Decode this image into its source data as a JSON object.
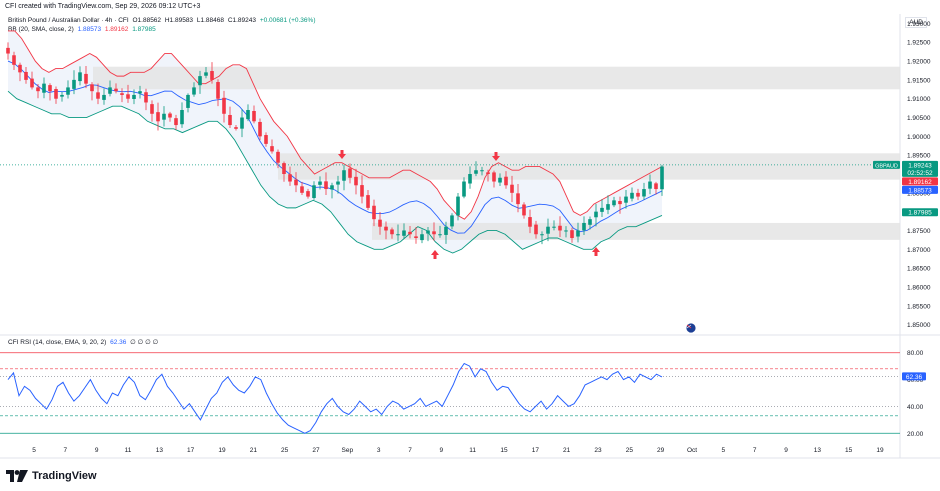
{
  "header": {
    "attribution": "CFI created with TradingView.com, Sep 29, 2026 09:12 UTC+3"
  },
  "currency_badge": "AUD",
  "legend": {
    "symbol": "British Pound / Australian Dollar · 4h · CFI",
    "open": "O1.88562",
    "high": "H1.89583",
    "low": "L1.88468",
    "close": "C1.89243",
    "change": "+0.00681 (+0.36%)",
    "bb_label": "BB (20, SMA, close, 2)",
    "bb_basis": "1.88573",
    "bb_upper": "1.89162",
    "bb_lower": "1.87985"
  },
  "rsi_legend": {
    "label": "CFI RSI (14, close, EMA, 9, 20, 2)",
    "value": "62.36",
    "extra": "∅ ∅ ∅ ∅"
  },
  "price_tags": {
    "symbol": "GBPAUD",
    "last": "1.89243",
    "countdown": "02:52:52",
    "upper": "1.89162",
    "basis": "1.88573",
    "lower": "1.87985",
    "rsi": "62.36"
  },
  "brand": "TradingView",
  "colors": {
    "up": "#089981",
    "down": "#f23645",
    "basis": "#2962ff",
    "upper": "#f23645",
    "lower": "#089981",
    "zone": "#e4e4e4",
    "fill": "#eef3fb",
    "rsi": "#2962ff",
    "arrow": "#f23645"
  },
  "chart_data": {
    "type": "candlestick",
    "y_ticks": [
      "1.93000",
      "1.92500",
      "1.92000",
      "1.91500",
      "1.91000",
      "1.90500",
      "1.90000",
      "1.89500",
      "1.89000",
      "1.88500",
      "1.88000",
      "1.87500",
      "1.87000",
      "1.86500",
      "1.86000",
      "1.85500",
      "1.85000"
    ],
    "ylim": [
      1.8475,
      1.9325
    ],
    "x_ticks": [
      "5",
      "7",
      "9",
      "11",
      "13",
      "17",
      "19",
      "21",
      "25",
      "27",
      "Sep",
      "3",
      "7",
      "9",
      "11",
      "15",
      "17",
      "21",
      "23",
      "25",
      "29",
      "Oct",
      "5",
      "7",
      "9",
      "13",
      "15",
      "19"
    ],
    "close_path": [
      1.922,
      1.919,
      1.917,
      1.915,
      1.913,
      1.912,
      1.914,
      1.912,
      1.91,
      1.911,
      1.913,
      1.915,
      1.917,
      1.914,
      1.912,
      1.91,
      1.911,
      1.913,
      1.912,
      1.911,
      1.91,
      1.911,
      1.912,
      1.909,
      1.906,
      1.904,
      1.906,
      1.905,
      1.903,
      1.907,
      1.911,
      1.913,
      1.916,
      1.917,
      1.915,
      1.91,
      1.906,
      1.903,
      1.902,
      1.905,
      1.907,
      1.904,
      1.9,
      1.898,
      1.896,
      1.893,
      1.89,
      1.888,
      1.887,
      1.885,
      1.884,
      1.887,
      1.888,
      1.886,
      1.887,
      1.888,
      1.891,
      1.889,
      1.887,
      1.884,
      1.881,
      1.878,
      1.876,
      1.875,
      1.874,
      1.874,
      1.875,
      1.874,
      1.873,
      1.874,
      1.875,
      1.874,
      1.874,
      1.876,
      1.879,
      1.884,
      1.888,
      1.89,
      1.891,
      1.891,
      1.89,
      1.888,
      1.889,
      1.887,
      1.885,
      1.882,
      1.879,
      1.876,
      1.874,
      1.874,
      1.876,
      1.876,
      1.875,
      1.875,
      1.873,
      1.875,
      1.877,
      1.878,
      1.88,
      1.881,
      1.882,
      1.883,
      1.882,
      1.884,
      1.885,
      1.884,
      1.886,
      1.888,
      1.886,
      1.892
    ],
    "bb_upper_path": [
      1.928,
      1.928,
      1.926,
      1.923,
      1.92,
      1.918,
      1.917,
      1.918,
      1.918,
      1.919,
      1.92,
      1.921,
      1.922,
      1.921,
      1.919,
      1.917,
      1.916,
      1.916,
      1.917,
      1.917,
      1.917,
      1.918,
      1.92,
      1.922,
      1.922,
      1.92,
      1.918,
      1.916,
      1.914,
      1.914,
      1.915,
      1.916,
      1.918,
      1.919,
      1.919,
      1.918,
      1.914,
      1.91,
      1.907,
      1.904,
      1.902,
      1.9,
      1.897,
      1.894,
      1.892,
      1.89,
      1.891,
      1.892,
      1.893,
      1.893,
      1.892,
      1.891,
      1.89,
      1.889,
      1.889,
      1.889,
      1.889,
      1.89,
      1.891,
      1.891,
      1.89,
      1.889,
      1.888,
      1.886,
      1.883,
      1.881,
      1.879,
      1.878,
      1.88,
      1.884,
      1.889,
      1.892,
      1.893,
      1.892,
      1.891,
      1.891,
      1.892,
      1.892,
      1.892,
      1.891,
      1.89,
      1.888,
      1.884,
      1.88,
      1.879,
      1.88,
      1.882,
      1.883,
      1.884,
      1.885,
      1.886,
      1.887,
      1.888,
      1.889,
      1.89,
      1.891,
      1.892
    ],
    "bb_lower_path": [
      1.912,
      1.91,
      1.909,
      1.908,
      1.907,
      1.906,
      1.906,
      1.905,
      1.905,
      1.905,
      1.906,
      1.907,
      1.908,
      1.908,
      1.907,
      1.906,
      1.904,
      1.903,
      1.902,
      1.902,
      1.901,
      1.902,
      1.903,
      1.904,
      1.904,
      1.902,
      1.899,
      1.895,
      1.891,
      1.887,
      1.884,
      1.882,
      1.881,
      1.881,
      1.882,
      1.883,
      1.882,
      1.88,
      1.877,
      1.874,
      1.872,
      1.871,
      1.87,
      1.87,
      1.871,
      1.872,
      1.874,
      1.876,
      1.875,
      1.872,
      1.87,
      1.869,
      1.87,
      1.872,
      1.874,
      1.875,
      1.875,
      1.874,
      1.872,
      1.87,
      1.871,
      1.872,
      1.873,
      1.873,
      1.872,
      1.871,
      1.87,
      1.87,
      1.872,
      1.873,
      1.875,
      1.876,
      1.876,
      1.877,
      1.878,
      1.879
    ],
    "resistance_zones": [
      [
        1.9125,
        1.9185
      ],
      [
        1.8885,
        1.8955
      ]
    ],
    "support_zone": [
      1.8725,
      1.877
    ],
    "rsi": {
      "ylim": [
        15,
        85
      ],
      "ticks": [
        "80.00",
        "60.00",
        "40.00",
        "20.00"
      ],
      "levels": [
        80,
        62.36,
        40,
        33,
        20
      ],
      "values": [
        60,
        65,
        48,
        55,
        52,
        46,
        42,
        38,
        45,
        55,
        58,
        50,
        44,
        48,
        54,
        60,
        52,
        46,
        42,
        50,
        48,
        56,
        62,
        58,
        48,
        45,
        52,
        60,
        64,
        55,
        50,
        44,
        38,
        42,
        36,
        30,
        38,
        46,
        50,
        58,
        62,
        56,
        52,
        50,
        55,
        62,
        60,
        50,
        42,
        35,
        30,
        26,
        24,
        22,
        20,
        22,
        28,
        36,
        42,
        46,
        40,
        36,
        34,
        38,
        44,
        40,
        36,
        38,
        34,
        40,
        44,
        42,
        38,
        40,
        42,
        46,
        40,
        42,
        44,
        40,
        48,
        56,
        66,
        72,
        70,
        62,
        68,
        66,
        58,
        52,
        55,
        54,
        48,
        42,
        38,
        36,
        40,
        44,
        38,
        42,
        48,
        44,
        40,
        42,
        48,
        56,
        58,
        60,
        62,
        60,
        64,
        66,
        60,
        62,
        58,
        64,
        62,
        60,
        64,
        62
      ]
    },
    "markers": [
      {
        "type": "down-arrow",
        "at": "resistance"
      },
      {
        "type": "down-arrow",
        "at": "resistance"
      },
      {
        "type": "up-arrow",
        "at": "support"
      },
      {
        "type": "up-arrow",
        "at": "support"
      }
    ]
  }
}
